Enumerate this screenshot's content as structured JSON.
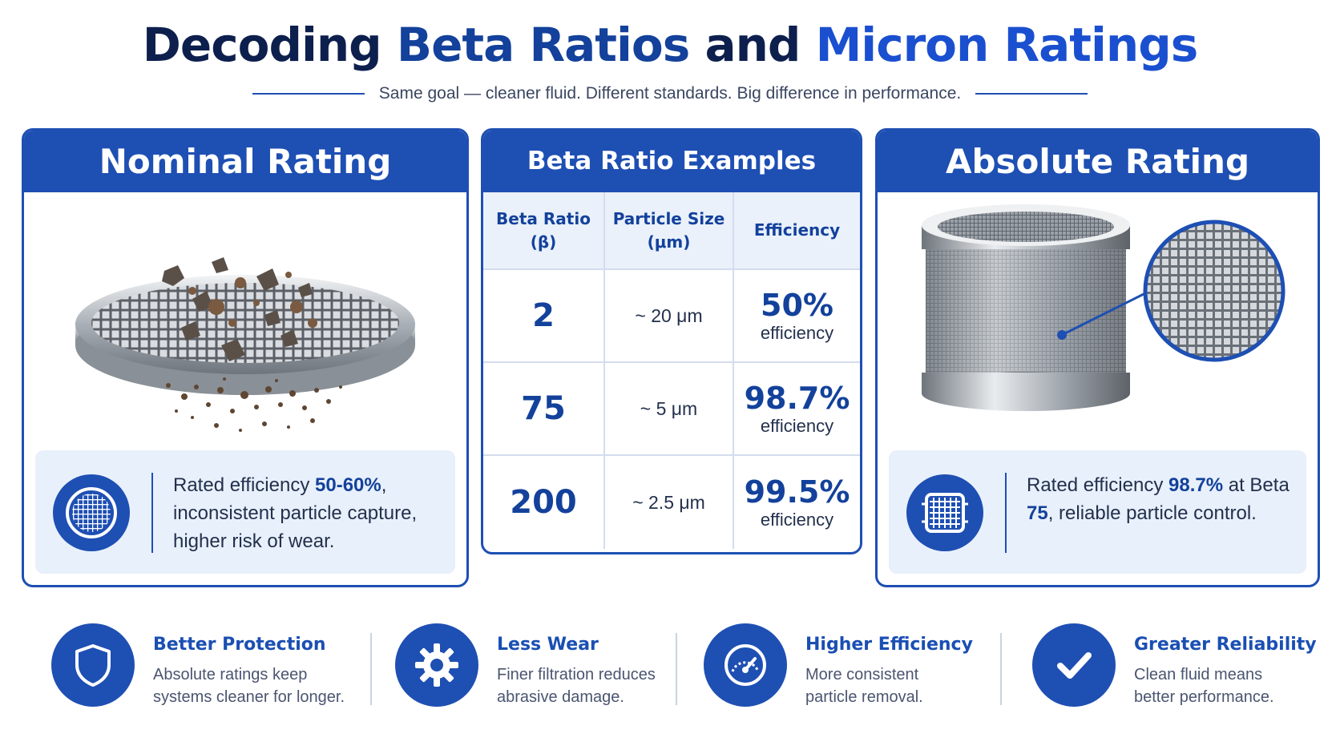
{
  "title": {
    "part1": "Decoding ",
    "part2": "Beta Ratios",
    "part3": " and ",
    "part4": "Micron Ratings"
  },
  "subtitle": "Same goal — cleaner fluid. Different standards. Big difference in performance.",
  "nominal": {
    "heading": "Nominal Rating",
    "text_pre": "Rated efficiency ",
    "text_bold": "50-60%",
    "text_post": ", inconsistent particle capture, higher risk of wear.",
    "icon": "mesh-circle-icon"
  },
  "beta": {
    "heading": "Beta Ratio Examples",
    "columns": [
      "Beta Ratio (β)",
      "Particle Size (μm)",
      "Efficiency"
    ],
    "rows": [
      {
        "beta": "2",
        "size": "~ 20 μm",
        "efficiency": "50%",
        "efficiency_label": "efficiency"
      },
      {
        "beta": "75",
        "size": "~ 5 μm",
        "efficiency": "98.7%",
        "efficiency_label": "efficiency"
      },
      {
        "beta": "200",
        "size": "~ 2.5 μm",
        "efficiency": "99.5%",
        "efficiency_label": "efficiency"
      }
    ]
  },
  "absolute": {
    "heading": "Absolute Rating",
    "text_pre": "Rated efficiency ",
    "text_bold1": "98.7%",
    "text_mid": " at Beta ",
    "text_bold2": "75",
    "text_post": ", reliable particle control.",
    "icon": "mesh-square-icon"
  },
  "features": [
    {
      "title": "Better Protection",
      "desc1": "Absolute ratings keep",
      "desc2": "systems cleaner for longer.",
      "icon": "shield-icon"
    },
    {
      "title": "Less Wear",
      "desc1": "Finer filtration reduces",
      "desc2": "abrasive damage.",
      "icon": "gear-icon"
    },
    {
      "title": "Higher Efficiency",
      "desc1": "More consistent",
      "desc2": "particle removal.",
      "icon": "gauge-icon"
    },
    {
      "title": "Greater Reliability",
      "desc1": "Clean fluid means",
      "desc2": "better performance.",
      "icon": "checkmark-icon"
    }
  ],
  "colors": {
    "primary": "#1e4fb3",
    "dark": "#0d1f4d",
    "bright": "#1a4fd0",
    "panel_bg": "#e8f0fb"
  }
}
